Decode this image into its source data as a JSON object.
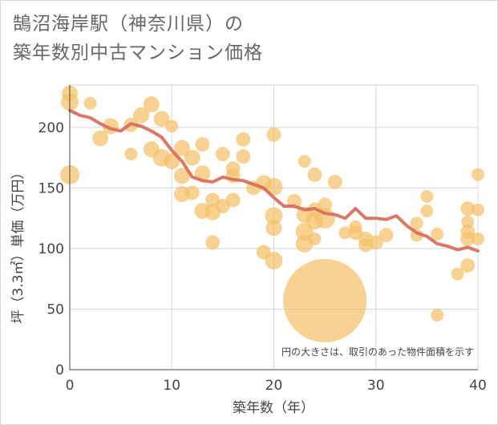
{
  "chart_data": {
    "type": "scatter",
    "title": "鵠沼海岸駅（神奈川県）の\n築年数別中古マンション価格",
    "xlabel": "築年数（年）",
    "ylabel": "坪（3.3㎡）単価（万円）",
    "xlim": [
      0,
      40
    ],
    "ylim": [
      0,
      235
    ],
    "x_ticks": [
      0,
      10,
      20,
      30,
      40
    ],
    "y_ticks": [
      0,
      50,
      100,
      150,
      200
    ],
    "grid": true,
    "annotation": "円の大きさは、取引のあった物件面積を示す",
    "colors": {
      "bubble": "#f5c06a",
      "line": "#d9705a",
      "grid": "#cfd8e0",
      "axis": "#444444"
    },
    "bubbles": [
      {
        "x": 0,
        "y": 228,
        "s": 10
      },
      {
        "x": 0,
        "y": 221,
        "s": 11
      },
      {
        "x": 0,
        "y": 161,
        "s": 12
      },
      {
        "x": 2,
        "y": 220,
        "s": 8
      },
      {
        "x": 3,
        "y": 191,
        "s": 10
      },
      {
        "x": 4,
        "y": 201,
        "s": 10
      },
      {
        "x": 6,
        "y": 202,
        "s": 9
      },
      {
        "x": 6,
        "y": 178,
        "s": 8
      },
      {
        "x": 7,
        "y": 210,
        "s": 10
      },
      {
        "x": 8,
        "y": 219,
        "s": 10
      },
      {
        "x": 8,
        "y": 182,
        "s": 10
      },
      {
        "x": 9,
        "y": 207,
        "s": 10
      },
      {
        "x": 9,
        "y": 175,
        "s": 11
      },
      {
        "x": 10,
        "y": 201,
        "s": 8
      },
      {
        "x": 10,
        "y": 172,
        "s": 10
      },
      {
        "x": 11,
        "y": 183,
        "s": 10
      },
      {
        "x": 11,
        "y": 160,
        "s": 10
      },
      {
        "x": 11,
        "y": 145,
        "s": 10
      },
      {
        "x": 12,
        "y": 175,
        "s": 10
      },
      {
        "x": 12,
        "y": 146,
        "s": 9
      },
      {
        "x": 13,
        "y": 186,
        "s": 9
      },
      {
        "x": 13,
        "y": 162,
        "s": 10
      },
      {
        "x": 13,
        "y": 131,
        "s": 10
      },
      {
        "x": 14,
        "y": 140,
        "s": 9
      },
      {
        "x": 14,
        "y": 130,
        "s": 10
      },
      {
        "x": 14,
        "y": 105,
        "s": 9
      },
      {
        "x": 15,
        "y": 178,
        "s": 9
      },
      {
        "x": 15,
        "y": 135,
        "s": 9
      },
      {
        "x": 16,
        "y": 166,
        "s": 9
      },
      {
        "x": 16,
        "y": 160,
        "s": 9
      },
      {
        "x": 16,
        "y": 140,
        "s": 9
      },
      {
        "x": 17,
        "y": 190,
        "s": 9
      },
      {
        "x": 17,
        "y": 176,
        "s": 9
      },
      {
        "x": 18,
        "y": 150,
        "s": 9
      },
      {
        "x": 19,
        "y": 154,
        "s": 10
      },
      {
        "x": 19,
        "y": 97,
        "s": 9
      },
      {
        "x": 20,
        "y": 194,
        "s": 9
      },
      {
        "x": 20,
        "y": 151,
        "s": 11
      },
      {
        "x": 20,
        "y": 127,
        "s": 11
      },
      {
        "x": 20,
        "y": 117,
        "s": 10
      },
      {
        "x": 20,
        "y": 90,
        "s": 11
      },
      {
        "x": 22,
        "y": 139,
        "s": 9
      },
      {
        "x": 23,
        "y": 172,
        "s": 8
      },
      {
        "x": 23,
        "y": 128,
        "s": 10
      },
      {
        "x": 23,
        "y": 114,
        "s": 11
      },
      {
        "x": 23,
        "y": 104,
        "s": 11
      },
      {
        "x": 24,
        "y": 161,
        "s": 9
      },
      {
        "x": 24,
        "y": 132,
        "s": 9
      },
      {
        "x": 24,
        "y": 123,
        "s": 11
      },
      {
        "x": 24,
        "y": 108,
        "s": 8
      },
      {
        "x": 25,
        "y": 136,
        "s": 9
      },
      {
        "x": 25,
        "y": 125,
        "s": 13
      },
      {
        "x": 25,
        "y": 57,
        "s": 52
      },
      {
        "x": 26,
        "y": 155,
        "s": 9
      },
      {
        "x": 27,
        "y": 113,
        "s": 8
      },
      {
        "x": 28,
        "y": 118,
        "s": 8
      },
      {
        "x": 28,
        "y": 113,
        "s": 9
      },
      {
        "x": 29,
        "y": 108,
        "s": 9
      },
      {
        "x": 29,
        "y": 103,
        "s": 9
      },
      {
        "x": 30,
        "y": 105,
        "s": 9
      },
      {
        "x": 31,
        "y": 111,
        "s": 9
      },
      {
        "x": 34,
        "y": 121,
        "s": 8
      },
      {
        "x": 34,
        "y": 111,
        "s": 8
      },
      {
        "x": 35,
        "y": 143,
        "s": 8
      },
      {
        "x": 35,
        "y": 131,
        "s": 8
      },
      {
        "x": 36,
        "y": 112,
        "s": 8
      },
      {
        "x": 36,
        "y": 45,
        "s": 8
      },
      {
        "x": 38,
        "y": 79,
        "s": 8
      },
      {
        "x": 39,
        "y": 133,
        "s": 9
      },
      {
        "x": 39,
        "y": 122,
        "s": 8
      },
      {
        "x": 39,
        "y": 114,
        "s": 9
      },
      {
        "x": 39,
        "y": 108,
        "s": 9
      },
      {
        "x": 39,
        "y": 86,
        "s": 9
      },
      {
        "x": 40,
        "y": 161,
        "s": 8
      },
      {
        "x": 40,
        "y": 132,
        "s": 8
      },
      {
        "x": 40,
        "y": 108,
        "s": 8
      }
    ],
    "trend": {
      "x": [
        0,
        1,
        2,
        3,
        4,
        5,
        6,
        7,
        8,
        9,
        10,
        11,
        12,
        13,
        14,
        15,
        16,
        17,
        18,
        19,
        20,
        21,
        22,
        23,
        24,
        25,
        26,
        27,
        28,
        29,
        30,
        31,
        32,
        33,
        34,
        35,
        36,
        37,
        38,
        39,
        40
      ],
      "y": [
        214,
        210,
        208,
        203,
        199,
        197,
        203,
        201,
        197,
        192,
        181,
        172,
        159,
        156,
        155,
        159,
        157,
        156,
        153,
        150,
        142,
        135,
        135,
        132,
        133,
        129,
        128,
        125,
        133,
        125,
        125,
        124,
        127,
        119,
        113,
        110,
        104,
        102,
        99,
        101,
        98
      ]
    }
  }
}
